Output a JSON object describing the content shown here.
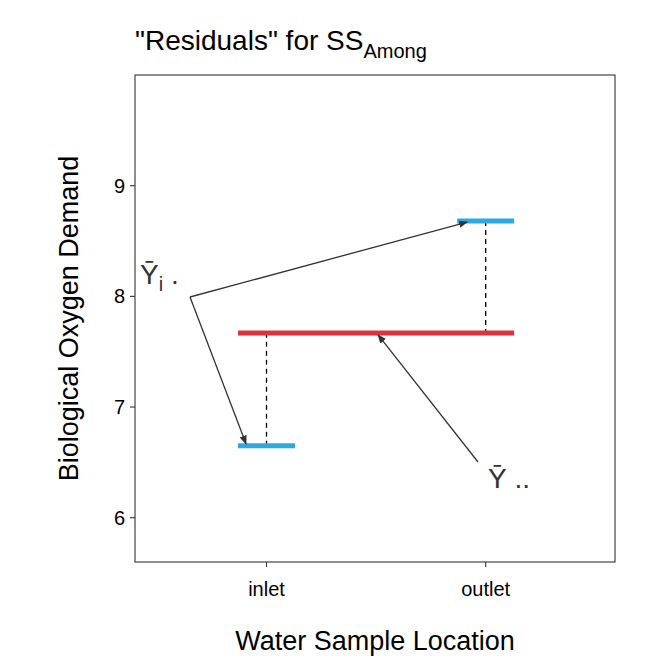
{
  "chart_data": {
    "type": "segment",
    "title": "\"Residuals\" for SS",
    "title_subscript": "Among",
    "x_label": "Water Sample Location",
    "y_label": "Biological Oxygen Demand",
    "categories": [
      "inlet",
      "outlet"
    ],
    "series": [
      {
        "type": "segment",
        "color": "#29abe2",
        "values": [
          6.65,
          8.68
        ]
      }
    ],
    "reference": {
      "value": 7.67,
      "color": "#e0313a"
    },
    "ylim": [
      5.6,
      10.0
    ],
    "yticks": [
      6,
      7,
      8,
      9
    ],
    "grid": false,
    "annotations": [
      {
        "text": "Ȳ",
        "subscript": "i",
        "suffix": " ."
      },
      {
        "text": "Ȳ",
        "suffix": " .."
      }
    ]
  }
}
